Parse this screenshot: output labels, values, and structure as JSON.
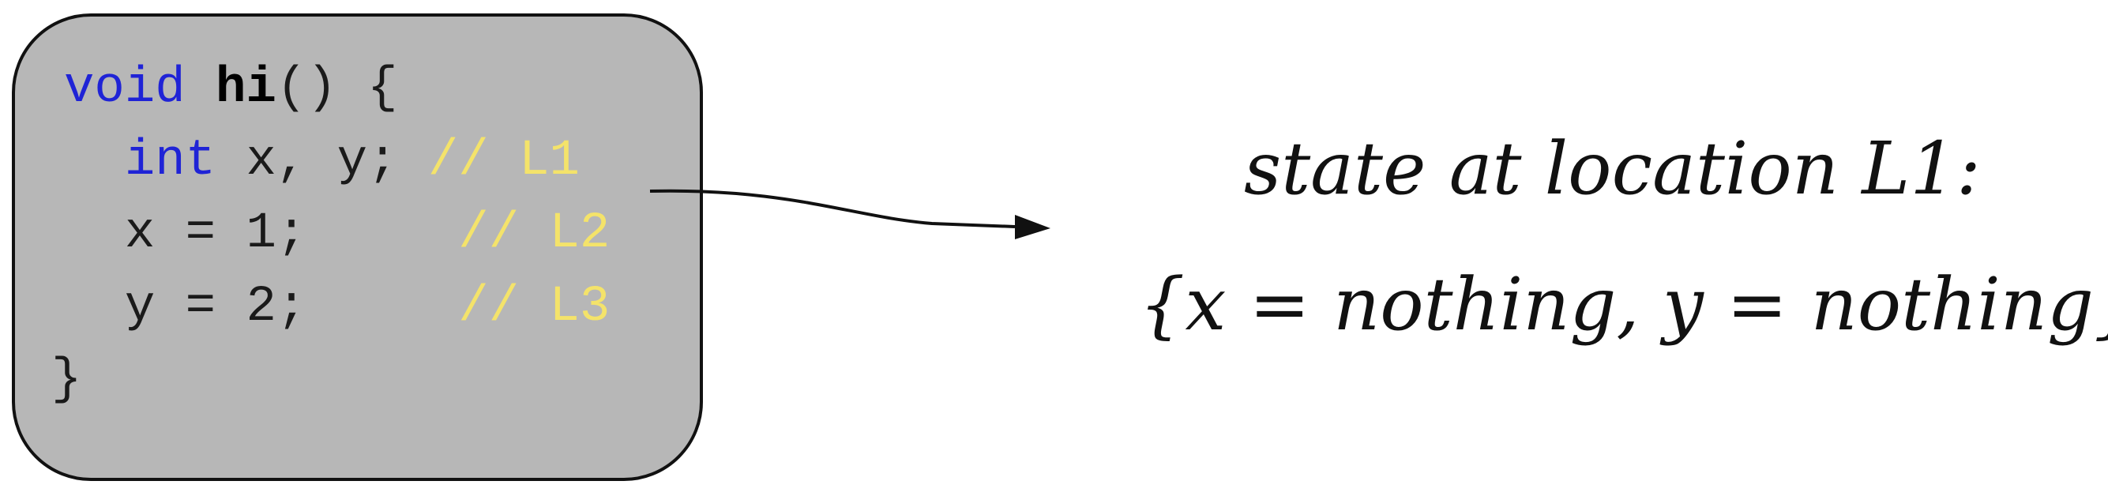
{
  "code": {
    "line1": {
      "keyword": "void",
      "space": " ",
      "name": "hi",
      "rest": "() {"
    },
    "line2": {
      "indent": "  ",
      "keyword": "int",
      "rest": " x, y; ",
      "comment": "// L1"
    },
    "line3": {
      "code": "  x = 1;     ",
      "comment": "// L2"
    },
    "line4": {
      "code": "  y = 2;     ",
      "comment": "// L3"
    },
    "line5": {
      "code": "}"
    }
  },
  "annotation": {
    "line1": "state at location L1:",
    "line2": "{x = nothing, y = nothing}"
  },
  "colors": {
    "code_background": "#b7b7b7",
    "keyword": "#1f23d6",
    "comment": "#f4e36a",
    "text": "#1a1a1a"
  }
}
